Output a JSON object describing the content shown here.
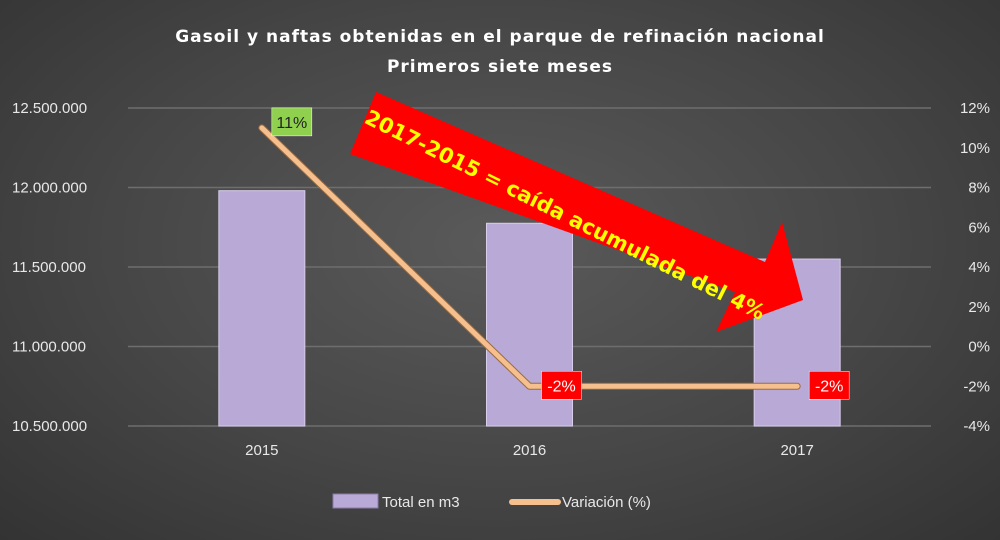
{
  "chart_data": {
    "type": "bar+line",
    "title": [
      "Gasoil y naftas obtenidas en el parque de refinación nacional",
      "Primeros siete meses"
    ],
    "categories": [
      "2015",
      "2016",
      "2017"
    ],
    "series": [
      {
        "name": "Total en m3",
        "type": "bar",
        "axis": "left",
        "values": [
          11980000,
          11775000,
          11550000
        ],
        "color": "#b9a9d6"
      },
      {
        "name": "Variación (%)",
        "type": "line",
        "axis": "right",
        "values": [
          11,
          -2,
          -2
        ],
        "color": "#f5c08e"
      }
    ],
    "left_axis": {
      "min": 10500000,
      "max": 12500000,
      "step": 500000,
      "tick_labels": [
        "10.500.000",
        "11.000.000",
        "11.500.000",
        "12.000.000",
        "12.500.000"
      ]
    },
    "right_axis": {
      "min": -4,
      "max": 12,
      "step": 2,
      "tick_labels": [
        "-4%",
        "-2%",
        "0%",
        "2%",
        "4%",
        "6%",
        "8%",
        "10%",
        "12%"
      ]
    },
    "data_labels": [
      {
        "text": "11%",
        "color": "#8fd14f"
      },
      {
        "text": "-2%",
        "color": "#ff0000"
      },
      {
        "text": "-2%",
        "color": "#ff0000"
      }
    ],
    "annotation": {
      "text": "2017-2015 = caída acumulada del 4%",
      "arrow_color": "#ff0000",
      "text_color": "#ffff00"
    },
    "grid": true,
    "legend": "bottom"
  }
}
